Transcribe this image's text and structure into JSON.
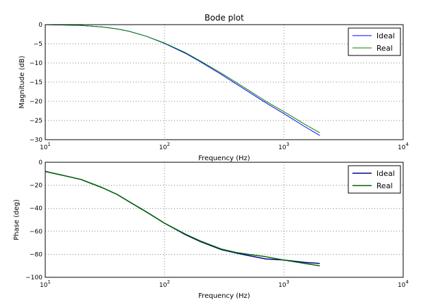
{
  "colors": {
    "ideal": "#0000ff",
    "real": "#008000",
    "ideal_dark": "#00008b",
    "real_dark": "#006400"
  },
  "chart_data": [
    {
      "type": "line",
      "title": "Bode plot",
      "xlabel": "Frequency (Hz)",
      "ylabel": "Magnitude (dB)",
      "xscale": "log",
      "xlim": [
        10,
        10000
      ],
      "ylim": [
        -30,
        0
      ],
      "xticks": [
        10,
        100,
        1000,
        10000
      ],
      "xtick_labels": [
        [
          "10",
          "1"
        ],
        [
          "10",
          "2"
        ],
        [
          "10",
          "3"
        ],
        [
          "10",
          "4"
        ]
      ],
      "yticks": [
        0,
        -5,
        -10,
        -15,
        -20,
        -25,
        -30
      ],
      "ytick_labels": [
        "0",
        "−5",
        "−10",
        "−15",
        "−20",
        "−25",
        "−30"
      ],
      "grid": true,
      "legend": "top-right",
      "series": [
        {
          "name": "Ideal",
          "color_key": "ideal",
          "x": [
            10,
            15,
            20,
            30,
            40,
            50,
            70,
            100,
            150,
            200,
            300,
            400,
            500,
            700,
            1000,
            1500,
            2000
          ],
          "y": [
            0.0,
            -0.1,
            -0.2,
            -0.6,
            -1.1,
            -1.7,
            -3.0,
            -4.9,
            -7.5,
            -9.7,
            -13.0,
            -15.5,
            -17.4,
            -20.3,
            -23.2,
            -26.6,
            -28.9
          ]
        },
        {
          "name": "Real",
          "color_key": "real",
          "x": [
            10,
            15,
            20,
            30,
            40,
            50,
            70,
            100,
            150,
            200,
            300,
            400,
            500,
            700,
            1000,
            1500,
            2000
          ],
          "y": [
            0.0,
            -0.1,
            -0.2,
            -0.6,
            -1.1,
            -1.7,
            -3.0,
            -4.8,
            -7.3,
            -9.5,
            -12.7,
            -15.1,
            -17.0,
            -19.9,
            -22.7,
            -26.0,
            -28.2
          ]
        }
      ]
    },
    {
      "type": "line",
      "xlabel": "Frequency (Hz)",
      "ylabel": "Phase (deg)",
      "xscale": "log",
      "xlim": [
        10,
        10000
      ],
      "ylim": [
        -100,
        0
      ],
      "xticks": [
        10,
        100,
        1000,
        10000
      ],
      "xtick_labels": [
        [
          "10",
          "1"
        ],
        [
          "10",
          "2"
        ],
        [
          "10",
          "3"
        ],
        [
          "10",
          "4"
        ]
      ],
      "yticks": [
        0,
        -20,
        -40,
        -60,
        -80,
        -100
      ],
      "ytick_labels": [
        "0",
        "−20",
        "−40",
        "−60",
        "−80",
        "−100"
      ],
      "grid": true,
      "legend": "top-right",
      "series": [
        {
          "name": "Ideal",
          "color_key": "ideal_dark",
          "x": [
            10,
            15,
            20,
            30,
            40,
            50,
            70,
            100,
            150,
            200,
            300,
            400,
            500,
            700,
            1000,
            1500,
            2000
          ],
          "y": [
            -8,
            -12,
            -15,
            -22,
            -28,
            -34,
            -43,
            -53,
            -63,
            -69,
            -76,
            -79,
            -81,
            -84,
            -85,
            -87,
            -88
          ]
        },
        {
          "name": "Real",
          "color_key": "real_dark",
          "x": [
            10,
            15,
            20,
            30,
            40,
            50,
            70,
            100,
            150,
            200,
            300,
            400,
            500,
            700,
            1000,
            1500,
            2000
          ],
          "y": [
            -8,
            -12,
            -15,
            -22,
            -28,
            -34,
            -43,
            -53,
            -62.5,
            -68.5,
            -75.5,
            -78.5,
            -80,
            -82,
            -85,
            -88,
            -90
          ]
        }
      ]
    }
  ]
}
